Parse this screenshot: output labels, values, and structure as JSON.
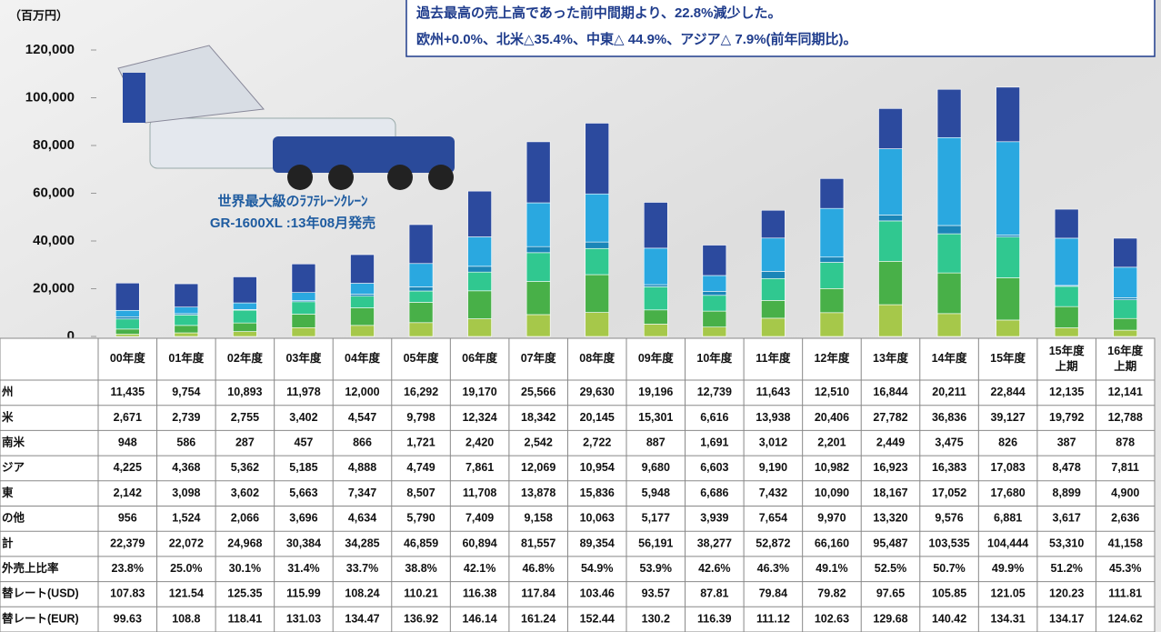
{
  "chart_data": {
    "type": "bar",
    "stacked": true,
    "y_axis_label": "（百万円）",
    "annotations": [
      "過去最高の売上高であった前中間期より、22.8%減少した。",
      "欧州+0.0%、北米△35.4%、中東△ 44.9%、アジア△ 7.9%(前年同期比)。"
    ],
    "image_caption": [
      "世界最大級のﾗﾌﾃﾚｰﾝｸﾚｰﾝ",
      "GR-1600XL :13年08月発売"
    ],
    "categories": [
      "00年度",
      "01年度",
      "02年度",
      "03年度",
      "04年度",
      "05年度",
      "06年度",
      "07年度",
      "08年度",
      "09年度",
      "10年度",
      "11年度",
      "12年度",
      "13年度",
      "14年度",
      "15年度",
      "15年度\n上期",
      "16年度\n上期"
    ],
    "ylim": [
      0,
      120000
    ],
    "yticks": [
      0,
      {
        "value": 20000,
        "label": "20,000"
      },
      {
        "value": 40000,
        "label": "40,000"
      },
      {
        "value": 60000,
        "label": "60,000"
      },
      {
        "value": 80000,
        "label": "80,000"
      },
      {
        "value": 100000,
        "label": "100,000"
      },
      {
        "value": 120000,
        "label": "120,000"
      }
    ],
    "series": [
      {
        "name": "州",
        "color": "#2c4a9e",
        "values": [
          11435,
          9754,
          10893,
          11978,
          12000,
          16292,
          19170,
          25566,
          29630,
          19196,
          12739,
          11643,
          12510,
          16844,
          20211,
          22844,
          12135,
          12141
        ],
        "value_labels": [
          "11,435",
          "9,754",
          "10,893",
          "11,978",
          "12,000",
          "16,292",
          "19,170",
          "25,566",
          "29,630",
          "19,196",
          "12,739",
          "11,643",
          "12,510",
          "16,844",
          "20,211",
          "22,844",
          "12,135",
          "12,141"
        ]
      },
      {
        "name": "米",
        "color": "#2aa8e0",
        "values": [
          2671,
          2739,
          2755,
          3402,
          4547,
          9798,
          12324,
          18342,
          20145,
          15301,
          6616,
          13938,
          20406,
          27782,
          36836,
          39127,
          19792,
          12788
        ],
        "value_labels": [
          "2,671",
          "2,739",
          "2,755",
          "3,402",
          "4,547",
          "9,798",
          "12,324",
          "18,342",
          "20,145",
          "15,301",
          "6,616",
          "13,938",
          "20,406",
          "27,782",
          "36,836",
          "39,127",
          "19,792",
          "12,788"
        ]
      },
      {
        "name": "南米",
        "color": "#1b86b8",
        "values": [
          948,
          586,
          287,
          457,
          866,
          1721,
          2420,
          2542,
          2722,
          887,
          1691,
          3012,
          2201,
          2449,
          3475,
          826,
          387,
          878
        ],
        "value_labels": [
          "948",
          "586",
          "287",
          "457",
          "866",
          "1,721",
          "2,420",
          "2,542",
          "2,722",
          "887",
          "1,691",
          "3,012",
          "2,201",
          "2,449",
          "3,475",
          "826",
          "387",
          "878"
        ]
      },
      {
        "name": "ジア",
        "color": "#30c890",
        "values": [
          4225,
          4368,
          5362,
          5185,
          4888,
          4749,
          7861,
          12069,
          10954,
          9680,
          6603,
          9190,
          10982,
          16923,
          16383,
          17083,
          8478,
          7811
        ],
        "value_labels": [
          "4,225",
          "4,368",
          "5,362",
          "5,185",
          "4,888",
          "4,749",
          "7,861",
          "12,069",
          "10,954",
          "9,680",
          "6,603",
          "9,190",
          "10,982",
          "16,923",
          "16,383",
          "17,083",
          "8,478",
          "7,811"
        ]
      },
      {
        "name": "東",
        "color": "#48b048",
        "values": [
          2142,
          3098,
          3602,
          5663,
          7347,
          8507,
          11708,
          13878,
          15836,
          5948,
          6686,
          7432,
          10090,
          18167,
          17052,
          17680,
          8899,
          4900
        ],
        "value_labels": [
          "2,142",
          "3,098",
          "3,602",
          "5,663",
          "7,347",
          "8,507",
          "11,708",
          "13,878",
          "15,836",
          "5,948",
          "6,686",
          "7,432",
          "10,090",
          "18,167",
          "17,052",
          "17,680",
          "8,899",
          "4,900"
        ]
      },
      {
        "name": "の他",
        "color": "#a6c84a",
        "values": [
          956,
          1524,
          2066,
          3696,
          4634,
          5790,
          7409,
          9158,
          10063,
          5177,
          3939,
          7654,
          9970,
          13320,
          9576,
          6881,
          3617,
          2636
        ],
        "value_labels": [
          "956",
          "1,524",
          "2,066",
          "3,696",
          "4,634",
          "5,790",
          "7,409",
          "9,158",
          "10,063",
          "5,177",
          "3,939",
          "7,654",
          "9,970",
          "13,320",
          "9,576",
          "6,881",
          "3,617",
          "2,636"
        ]
      }
    ],
    "table_rows": [
      {
        "label": "計",
        "values": [
          "22,379",
          "22,072",
          "24,968",
          "30,384",
          "34,285",
          "46,859",
          "60,894",
          "81,557",
          "89,354",
          "56,191",
          "38,277",
          "52,872",
          "66,160",
          "95,487",
          "103,535",
          "104,444",
          "53,310",
          "41,158"
        ]
      },
      {
        "label": "外売上比率",
        "values": [
          "23.8%",
          "25.0%",
          "30.1%",
          "31.4%",
          "33.7%",
          "38.8%",
          "42.1%",
          "46.8%",
          "54.9%",
          "53.9%",
          "42.6%",
          "46.3%",
          "49.1%",
          "52.5%",
          "50.7%",
          "49.9%",
          "51.2%",
          "45.3%"
        ]
      },
      {
        "label": "替レート(USD)",
        "values": [
          "107.83",
          "121.54",
          "125.35",
          "115.99",
          "108.24",
          "110.21",
          "116.38",
          "117.84",
          "103.46",
          "93.57",
          "87.81",
          "79.84",
          "79.82",
          "97.65",
          "105.85",
          "121.05",
          "120.23",
          "111.81"
        ]
      },
      {
        "label": "替レート(EUR)",
        "values": [
          "99.63",
          "108.8",
          "118.41",
          "131.03",
          "134.47",
          "136.92",
          "146.14",
          "161.24",
          "152.44",
          "130.2",
          "116.39",
          "111.12",
          "102.63",
          "129.68",
          "140.42",
          "134.31",
          "134.17",
          "124.62"
        ]
      }
    ]
  }
}
